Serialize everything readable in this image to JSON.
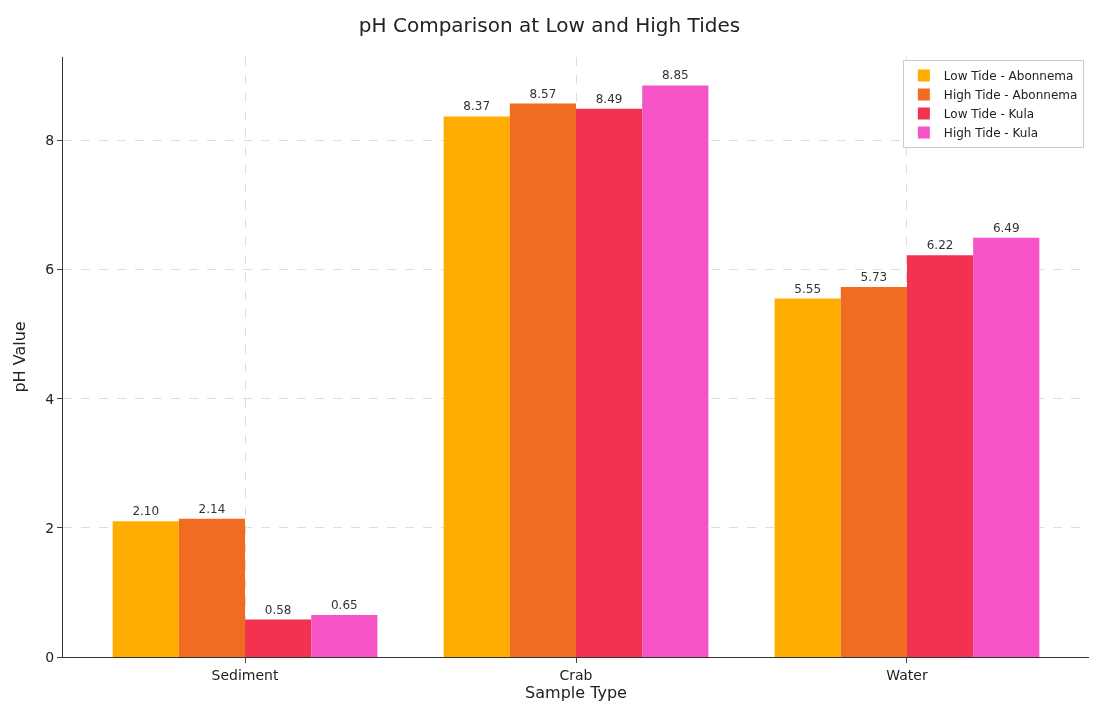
{
  "chart_data": {
    "type": "bar",
    "title": "pH Comparison at Low and High Tides",
    "xlabel": "Sample Type",
    "ylabel": "pH Value",
    "categories": [
      "Sediment",
      "Crab",
      "Water"
    ],
    "series": [
      {
        "name": "Low Tide - Abonnema",
        "color": "#ffad00",
        "values": [
          2.1,
          8.37,
          5.55
        ],
        "value_labels": [
          "2.10",
          "8.37",
          "5.55"
        ]
      },
      {
        "name": "High Tide - Abonnema",
        "color": "#f26b22",
        "values": [
          2.14,
          8.57,
          5.73
        ],
        "value_labels": [
          "2.14",
          "8.57",
          "5.73"
        ]
      },
      {
        "name": "Low Tide - Kula",
        "color": "#f2324f",
        "values": [
          0.58,
          8.49,
          6.22
        ],
        "value_labels": [
          "0.58",
          "8.49",
          "6.22"
        ]
      },
      {
        "name": "High Tide - Kula",
        "color": "#f553c6",
        "values": [
          0.65,
          8.85,
          6.49
        ],
        "value_labels": [
          "0.65",
          "8.85",
          "6.49"
        ]
      }
    ],
    "ylim": [
      0,
      9.29
    ],
    "yticks": [
      0,
      2,
      4,
      6,
      8
    ],
    "grid": true,
    "legend": "top right"
  }
}
